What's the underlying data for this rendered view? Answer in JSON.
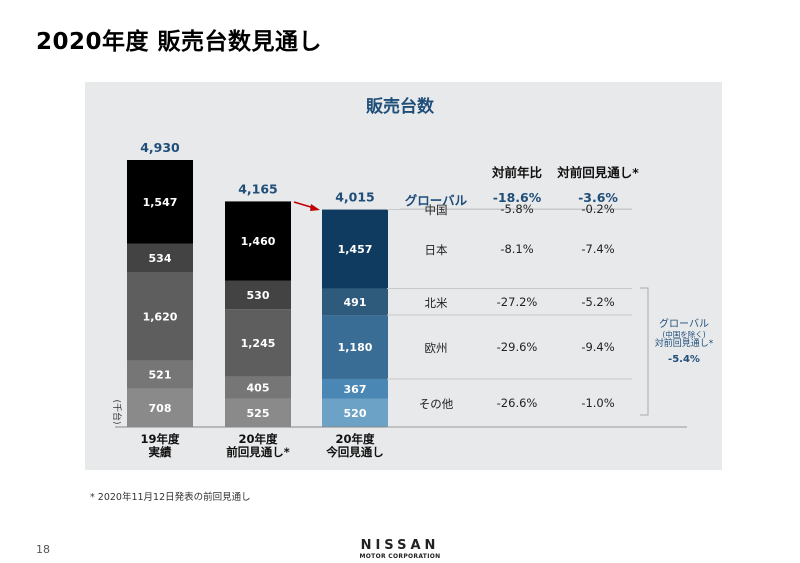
{
  "title": "2020年度 販売台数見通し",
  "page_number": "18",
  "footnote": "* 2020年11月12日発表の前回見通し",
  "logo": {
    "main": "NISSAN",
    "sub": "MOTOR CORPORATION"
  },
  "chart_data": {
    "type": "bar",
    "stacked": true,
    "title": "販売台数",
    "ylabel": "(千台)",
    "categories": [
      "19年度\n実績",
      "20年度\n前回見通し*",
      "20年度\n今回見通し"
    ],
    "category_lines": [
      [
        "19年度",
        "実績"
      ],
      [
        "20年度",
        "前回見通し*"
      ],
      [
        "20年度",
        "今回見通し"
      ]
    ],
    "totals": [
      "4,930",
      "4,165",
      "4,015"
    ],
    "total_values": [
      4930,
      4165,
      4015
    ],
    "segments_bottom_to_top": [
      "その他",
      "欧州",
      "北米",
      "日本",
      "中国"
    ],
    "values": [
      [
        708,
        521,
        1620,
        534,
        1547
      ],
      [
        525,
        405,
        1245,
        530,
        1460
      ],
      [
        520,
        367,
        1180,
        491,
        1457
      ]
    ],
    "labels": [
      [
        "708",
        "521",
        "1,620",
        "534",
        "1,547"
      ],
      [
        "525",
        "405",
        "1,245",
        "530",
        "1,460"
      ],
      [
        "520",
        "367",
        "1,180",
        "491",
        "1,457"
      ]
    ],
    "colors": [
      [
        "#8a8a8a",
        "#767676",
        "#5e5e5e",
        "#434343",
        "#000000"
      ],
      [
        "#8a8a8a",
        "#767676",
        "#5e5e5e",
        "#434343",
        "#000000"
      ],
      [
        "#6da2c7",
        "#4a87b4",
        "#3a6d95",
        "#2e5a7c",
        "#0e3b5f"
      ]
    ],
    "accent_color": "#1f4e79",
    "arrow_color": "#c00000"
  },
  "table": {
    "headers": [
      "対前年比",
      "対前回見通し*"
    ],
    "rows": [
      {
        "region": "グローバル",
        "yoy": "-18.6%",
        "vs_prev": "-3.6%"
      },
      {
        "region": "中国",
        "yoy": "-5.8%",
        "vs_prev": "-0.2%"
      },
      {
        "region": "日本",
        "yoy": "-8.1%",
        "vs_prev": "-7.4%"
      },
      {
        "region": "北米",
        "yoy": "-27.2%",
        "vs_prev": "-5.2%"
      },
      {
        "region": "欧州",
        "yoy": "-29.6%",
        "vs_prev": "-9.4%"
      },
      {
        "region": "その他",
        "yoy": "-26.6%",
        "vs_prev": "-1.0%"
      }
    ],
    "side_note": {
      "line1": "グローバル",
      "line2": "(中国を除く)",
      "line3": "対前回見通し*",
      "value": "-5.4%"
    }
  }
}
